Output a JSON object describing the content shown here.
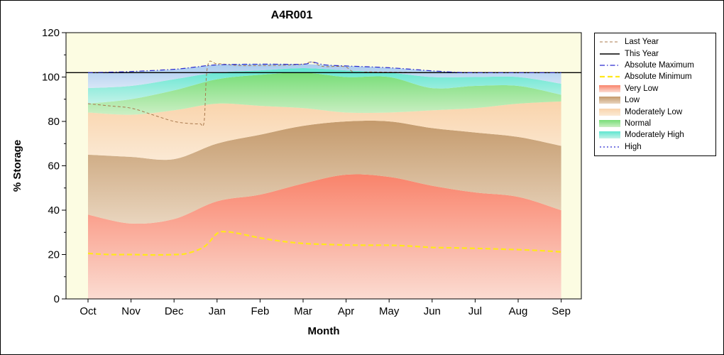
{
  "title": "A4R001",
  "chart_data": {
    "type": "area",
    "title": "A4R001",
    "xlabel": "Month",
    "ylabel": "% Storage",
    "categories": [
      "Oct",
      "Nov",
      "Dec",
      "Jan",
      "Feb",
      "Mar",
      "Apr",
      "May",
      "Jun",
      "Jul",
      "Aug",
      "Sep"
    ],
    "ylim": [
      0,
      120
    ],
    "yticks_major": [
      0,
      20,
      40,
      60,
      80,
      100,
      120
    ],
    "yticks_minor": [
      10,
      30,
      50,
      70,
      90,
      110
    ],
    "plot_bg": "#FCFCE2",
    "grid": false,
    "legend_position": "right",
    "bands": [
      {
        "name": "Very Low",
        "top": [
          38,
          34,
          36,
          44,
          47,
          52,
          56,
          55,
          51,
          48,
          46,
          40
        ],
        "color_top": "#F9836B",
        "color_bottom": "#FBDCD2"
      },
      {
        "name": "Low",
        "top": [
          65,
          64,
          63,
          70,
          74,
          78,
          80,
          80,
          77,
          75,
          73,
          69
        ],
        "color_top": "#C49A6C",
        "color_bottom": "#E9D5BE"
      },
      {
        "name": "Moderately Low",
        "top": [
          84,
          83,
          85,
          88,
          87,
          86,
          84,
          84,
          85,
          86,
          88,
          89
        ],
        "color_top": "#F9D4AC",
        "color_bottom": "#FBE9D4"
      },
      {
        "name": "Normal",
        "top": [
          88,
          90,
          94,
          99,
          101,
          102,
          100,
          100,
          95,
          96,
          96,
          92
        ],
        "color_top": "#77DD77",
        "color_bottom": "#CBEFC4"
      },
      {
        "name": "Moderately High",
        "top": [
          95,
          96,
          99,
          102,
          103,
          104,
          103,
          102,
          100,
          100,
          100,
          97
        ],
        "color_top": "#5FE6D0",
        "color_bottom": "#C2F2E8"
      },
      {
        "name": "High",
        "top": [
          102,
          102.5,
          103.5,
          105.5,
          105.8,
          105.8,
          105,
          104.2,
          102.8,
          102,
          102,
          102
        ],
        "color_top": "#A9CBEE",
        "color_bottom": "#D7E6F7"
      }
    ],
    "lines": [
      {
        "name": "Last Year",
        "color": "#A8784C",
        "width": 1,
        "dash": "4 3",
        "points": [
          [
            0,
            88
          ],
          [
            0.5,
            87
          ],
          [
            1,
            86
          ],
          [
            1.5,
            83
          ],
          [
            2,
            80
          ],
          [
            2.4,
            79
          ],
          [
            2.6,
            79
          ],
          [
            2.7,
            80
          ],
          [
            2.78,
            105
          ],
          [
            3,
            106
          ],
          [
            3.5,
            105.2
          ],
          [
            4,
            105.2
          ],
          [
            4.5,
            105.3
          ],
          [
            5,
            105.8
          ],
          [
            5.2,
            106.8
          ],
          [
            5.45,
            104.8
          ],
          [
            5.8,
            104.8
          ],
          [
            6,
            104.5
          ],
          [
            6.2,
            102
          ],
          [
            6.5,
            102.3
          ],
          [
            7,
            102.2
          ],
          [
            8,
            102
          ],
          [
            9,
            102
          ],
          [
            10,
            102
          ],
          [
            11,
            102
          ]
        ]
      },
      {
        "name": "This Year",
        "color": "#000000",
        "width": 1.4,
        "dash": "",
        "points": [
          [
            -0.51,
            102
          ],
          [
            11.46,
            102
          ]
        ]
      },
      {
        "name": "Absolute Maximum",
        "color": "#2B2BD0",
        "width": 1.2,
        "dash": "7 3 1.5 3",
        "points": [
          [
            0,
            102
          ],
          [
            1,
            102.5
          ],
          [
            2,
            103.5
          ],
          [
            2.5,
            104.5
          ],
          [
            3,
            105.5
          ],
          [
            4,
            105.8
          ],
          [
            5,
            105.8
          ],
          [
            5.2,
            106.8
          ],
          [
            5.5,
            105.5
          ],
          [
            6,
            105
          ],
          [
            7,
            104.2
          ],
          [
            8,
            102.8
          ],
          [
            8.6,
            102.1
          ],
          [
            9,
            102
          ],
          [
            10,
            102
          ],
          [
            11,
            102
          ]
        ]
      },
      {
        "name": "Absolute Minimum",
        "color": "#FFE81A",
        "width": 2.2,
        "dash": "7 4",
        "points": [
          [
            0,
            20.5
          ],
          [
            0.5,
            20
          ],
          [
            1,
            20
          ],
          [
            1.5,
            19.8
          ],
          [
            2,
            20
          ],
          [
            2.3,
            20.5
          ],
          [
            2.7,
            23.5
          ],
          [
            3,
            29.5
          ],
          [
            3.2,
            30.3
          ],
          [
            3.5,
            29.5
          ],
          [
            4,
            27.5
          ],
          [
            4.5,
            26
          ],
          [
            5,
            25
          ],
          [
            5.5,
            24.6
          ],
          [
            6,
            24.3
          ],
          [
            6.5,
            24.2
          ],
          [
            7,
            24.2
          ],
          [
            7.5,
            23.8
          ],
          [
            8,
            23.2
          ],
          [
            8.5,
            23
          ],
          [
            9,
            22.8
          ],
          [
            9.5,
            22.5
          ],
          [
            10,
            22.2
          ],
          [
            10.5,
            21.8
          ],
          [
            11,
            21.2
          ]
        ]
      }
    ]
  },
  "legend": {
    "items": [
      {
        "label": "Last Year",
        "swatch": "line",
        "color": "#A8784C",
        "dash": "4 3",
        "width": 1
      },
      {
        "label": "This Year",
        "swatch": "line",
        "color": "#000000",
        "dash": "",
        "width": 1.4
      },
      {
        "label": "Absolute Maximum",
        "swatch": "line",
        "color": "#2B2BD0",
        "dash": "7 3 1.5 3",
        "width": 1.2
      },
      {
        "label": "Absolute Minimum",
        "swatch": "line",
        "color": "#FFE81A",
        "dash": "7 4",
        "width": 2.2
      },
      {
        "label": "Very Low",
        "swatch": "band",
        "color_top": "#F9836B",
        "color_bottom": "#FBDCD2"
      },
      {
        "label": "Low",
        "swatch": "band",
        "color_top": "#C49A6C",
        "color_bottom": "#E9D5BE"
      },
      {
        "label": "Moderately Low",
        "swatch": "band",
        "color_top": "#F9D4AC",
        "color_bottom": "#FBE9D4"
      },
      {
        "label": "Normal",
        "swatch": "band",
        "color_top": "#77DD77",
        "color_bottom": "#CBEFC4"
      },
      {
        "label": "Moderately High",
        "swatch": "band",
        "color_top": "#5FE6D0",
        "color_bottom": "#C2F2E8"
      },
      {
        "label": "High",
        "swatch": "line",
        "color": "#2B2BD0",
        "dash": "2 3",
        "width": 1.2
      }
    ]
  }
}
